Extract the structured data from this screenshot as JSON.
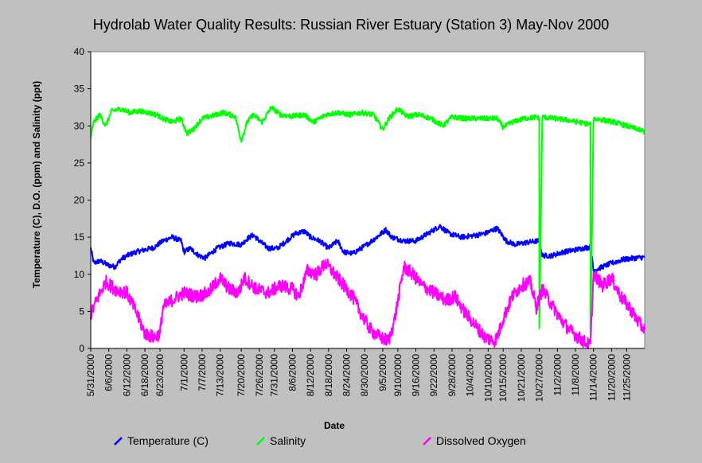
{
  "chart_data": {
    "type": "line",
    "title": "Hydrolab Water Quality Results: Russian River Estuary (Station 3) May-Nov 2000",
    "xlabel": "Date",
    "ylabel": "Temperature (C), D.O. (ppm) and Salinity (ppt)",
    "ylim": [
      0,
      40
    ],
    "yticks": [
      0,
      5,
      10,
      15,
      20,
      25,
      30,
      35,
      40
    ],
    "xlim": [
      "2000-05-31",
      "2000-12-01"
    ],
    "xticks": [
      "5/31/2000",
      "6/6/2000",
      "6/12/2000",
      "6/18/2000",
      "6/23/2000",
      "7/1/2000",
      "7/7/2000",
      "7/13/2000",
      "7/20/2000",
      "7/26/2000",
      "7/31/2000",
      "8/6/2000",
      "8/12/2000",
      "8/18/2000",
      "8/24/2000",
      "8/30/2000",
      "9/5/2000",
      "9/10/2000",
      "9/16/2000",
      "9/22/2000",
      "9/28/2000",
      "10/4/2000",
      "10/10/2000",
      "10/15/2000",
      "10/21/2000",
      "10/27/2000",
      "11/2/2000",
      "11/8/2000",
      "11/14/2000",
      "11/20/2000",
      "11/25/2000"
    ],
    "grid": false,
    "legend_position": "bottom",
    "series": [
      {
        "name": "Temperature (C)",
        "color": "#0000ff",
        "points": [
          [
            "2000-05-31",
            13.5
          ],
          [
            "2000-06-01",
            11.5
          ],
          [
            "2000-06-03",
            11.8
          ],
          [
            "2000-06-06",
            11.2
          ],
          [
            "2000-06-08",
            11.0
          ],
          [
            "2000-06-10",
            12.0
          ],
          [
            "2000-06-12",
            12.5
          ],
          [
            "2000-06-15",
            13.0
          ],
          [
            "2000-06-18",
            13.3
          ],
          [
            "2000-06-21",
            13.6
          ],
          [
            "2000-06-24",
            14.5
          ],
          [
            "2000-06-27",
            15.0
          ],
          [
            "2000-06-30",
            14.5
          ],
          [
            "2000-07-01",
            13.0
          ],
          [
            "2000-07-03",
            13.5
          ],
          [
            "2000-07-06",
            12.5
          ],
          [
            "2000-07-08",
            12.2
          ],
          [
            "2000-07-12",
            13.5
          ],
          [
            "2000-07-16",
            14.2
          ],
          [
            "2000-07-20",
            14.0
          ],
          [
            "2000-07-22",
            14.8
          ],
          [
            "2000-07-24",
            15.3
          ],
          [
            "2000-07-26",
            14.5
          ],
          [
            "2000-07-29",
            13.5
          ],
          [
            "2000-08-01",
            13.5
          ],
          [
            "2000-08-04",
            14.5
          ],
          [
            "2000-08-07",
            15.5
          ],
          [
            "2000-08-10",
            15.8
          ],
          [
            "2000-08-12",
            15.0
          ],
          [
            "2000-08-15",
            14.5
          ],
          [
            "2000-08-18",
            13.5
          ],
          [
            "2000-08-21",
            14.5
          ],
          [
            "2000-08-23",
            13.0
          ],
          [
            "2000-08-26",
            12.8
          ],
          [
            "2000-08-30",
            13.8
          ],
          [
            "2000-09-03",
            15.0
          ],
          [
            "2000-09-06",
            16.0
          ],
          [
            "2000-09-08",
            15.0
          ],
          [
            "2000-09-12",
            14.5
          ],
          [
            "2000-09-16",
            14.5
          ],
          [
            "2000-09-20",
            15.5
          ],
          [
            "2000-09-24",
            16.5
          ],
          [
            "2000-09-27",
            15.5
          ],
          [
            "2000-10-01",
            15.0
          ],
          [
            "2000-10-05",
            15.2
          ],
          [
            "2000-10-09",
            15.5
          ],
          [
            "2000-10-13",
            16.2
          ],
          [
            "2000-10-16",
            14.5
          ],
          [
            "2000-10-19",
            14.0
          ],
          [
            "2000-10-23",
            14.3
          ],
          [
            "2000-10-27",
            14.5
          ],
          [
            "2000-10-28",
            12.5
          ],
          [
            "2000-10-31",
            12.5
          ],
          [
            "2000-11-04",
            13.0
          ],
          [
            "2000-11-08",
            13.3
          ],
          [
            "2000-11-13",
            13.7
          ],
          [
            "2000-11-14",
            10.5
          ],
          [
            "2000-11-17",
            11.0
          ],
          [
            "2000-11-20",
            11.5
          ],
          [
            "2000-11-24",
            12.0
          ],
          [
            "2000-11-28",
            12.2
          ],
          [
            "2000-12-01",
            12.3
          ]
        ]
      },
      {
        "name": "Salinity",
        "color": "#00ff00",
        "points": [
          [
            "2000-05-31",
            28.5
          ],
          [
            "2000-06-01",
            30.5
          ],
          [
            "2000-06-03",
            31.5
          ],
          [
            "2000-06-05",
            30.0
          ],
          [
            "2000-06-07",
            32.0
          ],
          [
            "2000-06-10",
            32.3
          ],
          [
            "2000-06-13",
            31.8
          ],
          [
            "2000-06-16",
            32.0
          ],
          [
            "2000-06-19",
            31.8
          ],
          [
            "2000-06-22",
            31.5
          ],
          [
            "2000-06-24",
            31.0
          ],
          [
            "2000-06-27",
            30.5
          ],
          [
            "2000-06-30",
            31.0
          ],
          [
            "2000-07-02",
            29.0
          ],
          [
            "2000-07-04",
            29.5
          ],
          [
            "2000-07-07",
            31.0
          ],
          [
            "2000-07-10",
            31.3
          ],
          [
            "2000-07-14",
            31.8
          ],
          [
            "2000-07-18",
            31.3
          ],
          [
            "2000-07-20",
            28.0
          ],
          [
            "2000-07-22",
            30.5
          ],
          [
            "2000-07-24",
            31.5
          ],
          [
            "2000-07-27",
            30.5
          ],
          [
            "2000-07-30",
            32.5
          ],
          [
            "2000-08-02",
            31.5
          ],
          [
            "2000-08-06",
            31.3
          ],
          [
            "2000-08-10",
            31.5
          ],
          [
            "2000-08-13",
            30.5
          ],
          [
            "2000-08-17",
            31.5
          ],
          [
            "2000-08-21",
            31.8
          ],
          [
            "2000-08-25",
            31.5
          ],
          [
            "2000-08-29",
            31.8
          ],
          [
            "2000-09-02",
            31.5
          ],
          [
            "2000-09-05",
            29.5
          ],
          [
            "2000-09-07",
            31.0
          ],
          [
            "2000-09-10",
            32.3
          ],
          [
            "2000-09-13",
            31.3
          ],
          [
            "2000-09-17",
            31.5
          ],
          [
            "2000-09-21",
            31.0
          ],
          [
            "2000-09-25",
            30.0
          ],
          [
            "2000-09-28",
            31.2
          ],
          [
            "2000-10-02",
            31.0
          ],
          [
            "2000-10-06",
            31.0
          ],
          [
            "2000-10-10",
            31.0
          ],
          [
            "2000-10-13",
            31.0
          ],
          [
            "2000-10-15",
            29.8
          ],
          [
            "2000-10-18",
            30.5
          ],
          [
            "2000-10-22",
            31.0
          ],
          [
            "2000-10-26",
            31.2
          ],
          [
            "2000-10-27",
            31.0
          ],
          [
            "2000-10-27",
            2.5
          ],
          [
            "2000-10-28",
            31.2
          ],
          [
            "2000-11-01",
            31.0
          ],
          [
            "2000-11-05",
            30.8
          ],
          [
            "2000-11-09",
            30.5
          ],
          [
            "2000-11-13",
            30.2
          ],
          [
            "2000-11-13",
            1.0
          ],
          [
            "2000-11-14",
            31.0
          ],
          [
            "2000-11-17",
            30.8
          ],
          [
            "2000-11-21",
            30.5
          ],
          [
            "2000-11-25",
            30.0
          ],
          [
            "2000-11-29",
            29.5
          ],
          [
            "2000-12-01",
            29.2
          ]
        ]
      },
      {
        "name": "Dissolved Oxygen",
        "color": "#ff00ff",
        "points": [
          [
            "2000-05-31",
            4.5
          ],
          [
            "2000-06-02",
            6.5
          ],
          [
            "2000-06-05",
            9.0
          ],
          [
            "2000-06-08",
            8.0
          ],
          [
            "2000-06-12",
            7.5
          ],
          [
            "2000-06-15",
            5.0
          ],
          [
            "2000-06-18",
            2.0
          ],
          [
            "2000-06-21",
            1.5
          ],
          [
            "2000-06-23",
            2.0
          ],
          [
            "2000-06-24",
            5.5
          ],
          [
            "2000-06-27",
            6.5
          ],
          [
            "2000-07-01",
            7.5
          ],
          [
            "2000-07-05",
            7.0
          ],
          [
            "2000-07-09",
            7.5
          ],
          [
            "2000-07-13",
            9.5
          ],
          [
            "2000-07-16",
            8.0
          ],
          [
            "2000-07-19",
            7.5
          ],
          [
            "2000-07-21",
            9.5
          ],
          [
            "2000-07-25",
            8.0
          ],
          [
            "2000-07-29",
            7.5
          ],
          [
            "2000-08-02",
            8.5
          ],
          [
            "2000-08-06",
            8.0
          ],
          [
            "2000-08-08",
            7.0
          ],
          [
            "2000-08-11",
            10.5
          ],
          [
            "2000-08-14",
            10.0
          ],
          [
            "2000-08-17",
            11.5
          ],
          [
            "2000-08-20",
            10.0
          ],
          [
            "2000-08-23",
            8.5
          ],
          [
            "2000-08-26",
            7.0
          ],
          [
            "2000-08-29",
            4.5
          ],
          [
            "2000-09-01",
            2.5
          ],
          [
            "2000-09-04",
            1.5
          ],
          [
            "2000-09-07",
            1.0
          ],
          [
            "2000-09-09",
            4.0
          ],
          [
            "2000-09-12",
            11.0
          ],
          [
            "2000-09-15",
            10.0
          ],
          [
            "2000-09-18",
            8.5
          ],
          [
            "2000-09-22",
            7.5
          ],
          [
            "2000-09-26",
            6.5
          ],
          [
            "2000-09-29",
            7.0
          ],
          [
            "2000-10-02",
            5.0
          ],
          [
            "2000-10-06",
            3.0
          ],
          [
            "2000-10-09",
            1.5
          ],
          [
            "2000-10-12",
            1.0
          ],
          [
            "2000-10-13",
            1.5
          ],
          [
            "2000-10-15",
            4.0
          ],
          [
            "2000-10-18",
            7.0
          ],
          [
            "2000-10-21",
            8.5
          ],
          [
            "2000-10-24",
            9.0
          ],
          [
            "2000-10-26",
            5.5
          ],
          [
            "2000-10-28",
            8.0
          ],
          [
            "2000-10-31",
            6.0
          ],
          [
            "2000-11-03",
            4.0
          ],
          [
            "2000-11-06",
            2.5
          ],
          [
            "2000-11-09",
            1.5
          ],
          [
            "2000-11-12",
            0.6
          ],
          [
            "2000-11-13",
            0.4
          ],
          [
            "2000-11-14",
            10.0
          ],
          [
            "2000-11-17",
            8.5
          ],
          [
            "2000-11-20",
            9.5
          ],
          [
            "2000-11-23",
            7.0
          ],
          [
            "2000-11-26",
            5.5
          ],
          [
            "2000-11-29",
            3.5
          ],
          [
            "2000-12-01",
            2.5
          ]
        ]
      }
    ]
  }
}
